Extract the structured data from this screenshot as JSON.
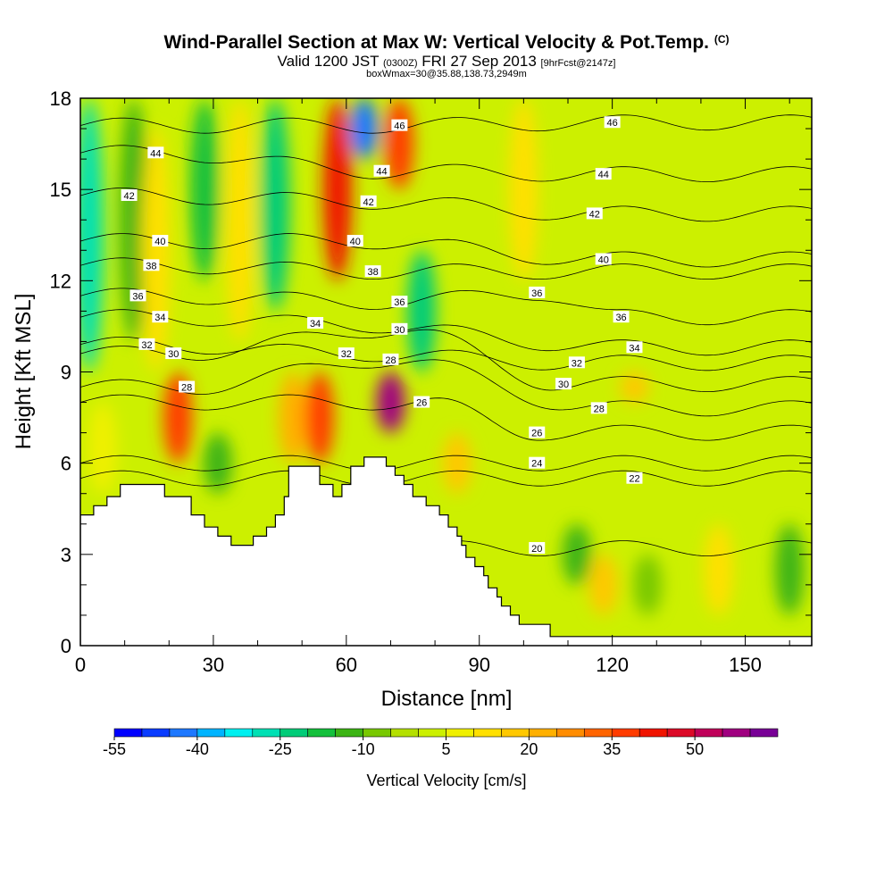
{
  "titles": {
    "main": "Wind-Parallel Section at Max W: Vertical Velocity & Pot.Temp.",
    "main_mark": "(C)",
    "valid_prefix": "Valid 1200 JST",
    "valid_utc": "(0300Z)",
    "valid_date": "FRI 27 Sep 2013",
    "valid_fcst": "[9hrFcst@2147z]",
    "box": "boxWmax=30@35.88,138.73,2949m"
  },
  "chart_data": {
    "type": "heatmap",
    "xlabel": "Distance [nm]",
    "ylabel": "Height [Kft MSL]",
    "xlim": [
      0,
      165
    ],
    "ylim": [
      0,
      18
    ],
    "x_ticks": [
      "0",
      "30",
      "60",
      "90",
      "120",
      "150"
    ],
    "y_ticks": [
      "0",
      "3",
      "6",
      "9",
      "12",
      "15",
      "18"
    ],
    "colorbar": {
      "label": "Vertical Velocity [cm/s]",
      "levels": [
        -55,
        -50,
        -45,
        -40,
        -35,
        -30,
        -25,
        -20,
        -15,
        -10,
        -5,
        0,
        5,
        10,
        15,
        20,
        25,
        30,
        35,
        40,
        45,
        50,
        55,
        60
      ],
      "tick_labels": [
        "-55",
        "-40",
        "-25",
        "-10",
        "5",
        "20",
        "35",
        "50"
      ],
      "colors": [
        "#0000ff",
        "#0a3cff",
        "#1e78ff",
        "#00b4ff",
        "#00f0f0",
        "#00e0b4",
        "#00cc78",
        "#14c03c",
        "#3cb414",
        "#78c800",
        "#b4e000",
        "#ccf000",
        "#f0f000",
        "#ffe000",
        "#ffc800",
        "#ffb000",
        "#ff8c00",
        "#ff6400",
        "#ff3c00",
        "#f01400",
        "#dc0a28",
        "#c0005a",
        "#a00080",
        "#780096"
      ]
    },
    "vertical_velocity_cells": [
      {
        "x": 2,
        "y0": 9,
        "y1": 18,
        "w": -30
      },
      {
        "x": 5,
        "y0": 5,
        "y1": 8,
        "w": 5
      },
      {
        "x": 12,
        "y0": 10,
        "y1": 18,
        "w": -15
      },
      {
        "x": 17,
        "y0": 9,
        "y1": 17,
        "w": 10
      },
      {
        "x": 22,
        "y0": 6,
        "y1": 9,
        "w": 35
      },
      {
        "x": 28,
        "y0": 12,
        "y1": 18,
        "w": -20
      },
      {
        "x": 31,
        "y0": 5,
        "y1": 7,
        "w": -15
      },
      {
        "x": 36,
        "y0": 10,
        "y1": 18,
        "w": 10
      },
      {
        "x": 44,
        "y0": 11,
        "y1": 18,
        "w": -25
      },
      {
        "x": 48,
        "y0": 6,
        "y1": 9,
        "w": 20
      },
      {
        "x": 54,
        "y0": 6,
        "y1": 9,
        "w": 35
      },
      {
        "x": 58,
        "y0": 12,
        "y1": 18,
        "w": 40
      },
      {
        "x": 64,
        "y0": 16,
        "y1": 18,
        "w": -45
      },
      {
        "x": 70,
        "y0": 7,
        "y1": 9,
        "w": 55
      },
      {
        "x": 72,
        "y0": 15,
        "y1": 18,
        "w": 35
      },
      {
        "x": 77,
        "y0": 9,
        "y1": 13,
        "w": -25
      },
      {
        "x": 85,
        "y0": 5,
        "y1": 7,
        "w": 15
      },
      {
        "x": 100,
        "y0": 12,
        "y1": 18,
        "w": 10
      },
      {
        "x": 112,
        "y0": 2,
        "y1": 4,
        "w": -15
      },
      {
        "x": 118,
        "y0": 1,
        "y1": 3,
        "w": 15
      },
      {
        "x": 125,
        "y0": 8,
        "y1": 9,
        "w": 15
      },
      {
        "x": 128,
        "y0": 1,
        "y1": 3,
        "w": -10
      },
      {
        "x": 144,
        "y0": 1,
        "y1": 4,
        "w": 10
      },
      {
        "x": 160,
        "y0": 1,
        "y1": 4,
        "w": -15
      }
    ],
    "theta_contours": [
      {
        "label": "20",
        "x_label": 103,
        "y_label": 3.2
      },
      {
        "label": "22",
        "x_label": 125,
        "y_label": 5.5
      },
      {
        "label": "24",
        "x_label": 103,
        "y_label": 6.0
      },
      {
        "label": "26",
        "x_label": 77,
        "y_label": 8.0
      },
      {
        "label": "26",
        "x_label": 103,
        "y_label": 7.0
      },
      {
        "label": "28",
        "x_label": 24,
        "y_label": 8.5
      },
      {
        "label": "28",
        "x_label": 70,
        "y_label": 9.4
      },
      {
        "label": "28",
        "x_label": 117,
        "y_label": 7.8
      },
      {
        "label": "30",
        "x_label": 21,
        "y_label": 9.6
      },
      {
        "label": "30",
        "x_label": 72,
        "y_label": 10.4
      },
      {
        "label": "30",
        "x_label": 109,
        "y_label": 8.6
      },
      {
        "label": "32",
        "x_label": 15,
        "y_label": 9.9
      },
      {
        "label": "32",
        "x_label": 60,
        "y_label": 9.6
      },
      {
        "label": "32",
        "x_label": 112,
        "y_label": 9.3
      },
      {
        "label": "34",
        "x_label": 18,
        "y_label": 10.8
      },
      {
        "label": "34",
        "x_label": 53,
        "y_label": 10.6
      },
      {
        "label": "34",
        "x_label": 125,
        "y_label": 9.8
      },
      {
        "label": "36",
        "x_label": 13,
        "y_label": 11.5
      },
      {
        "label": "36",
        "x_label": 72,
        "y_label": 11.3
      },
      {
        "label": "36",
        "x_label": 103,
        "y_label": 11.6
      },
      {
        "label": "36",
        "x_label": 122,
        "y_label": 10.8
      },
      {
        "label": "38",
        "x_label": 16,
        "y_label": 12.5
      },
      {
        "label": "38",
        "x_label": 66,
        "y_label": 12.3
      },
      {
        "label": "40",
        "x_label": 18,
        "y_label": 13.3
      },
      {
        "label": "40",
        "x_label": 62,
        "y_label": 13.3
      },
      {
        "label": "40",
        "x_label": 118,
        "y_label": 12.7
      },
      {
        "label": "42",
        "x_label": 11,
        "y_label": 14.8
      },
      {
        "label": "42",
        "x_label": 65,
        "y_label": 14.6
      },
      {
        "label": "42",
        "x_label": 116,
        "y_label": 14.2
      },
      {
        "label": "44",
        "x_label": 17,
        "y_label": 16.2
      },
      {
        "label": "44",
        "x_label": 68,
        "y_label": 15.6
      },
      {
        "label": "44",
        "x_label": 118,
        "y_label": 15.5
      },
      {
        "label": "46",
        "x_label": 72,
        "y_label": 17.1
      },
      {
        "label": "46",
        "x_label": 120,
        "y_label": 17.2
      }
    ],
    "terrain": [
      {
        "x": 0,
        "h": 4.3
      },
      {
        "x": 3,
        "h": 4.3
      },
      {
        "x": 3,
        "h": 4.6
      },
      {
        "x": 6,
        "h": 4.6
      },
      {
        "x": 6,
        "h": 4.9
      },
      {
        "x": 9,
        "h": 4.9
      },
      {
        "x": 9,
        "h": 5.3
      },
      {
        "x": 19,
        "h": 5.3
      },
      {
        "x": 19,
        "h": 4.9
      },
      {
        "x": 25,
        "h": 4.9
      },
      {
        "x": 25,
        "h": 4.3
      },
      {
        "x": 28,
        "h": 4.3
      },
      {
        "x": 28,
        "h": 3.9
      },
      {
        "x": 31,
        "h": 3.9
      },
      {
        "x": 31,
        "h": 3.6
      },
      {
        "x": 34,
        "h": 3.6
      },
      {
        "x": 34,
        "h": 3.3
      },
      {
        "x": 39,
        "h": 3.3
      },
      {
        "x": 39,
        "h": 3.6
      },
      {
        "x": 42,
        "h": 3.6
      },
      {
        "x": 42,
        "h": 3.9
      },
      {
        "x": 44,
        "h": 3.9
      },
      {
        "x": 44,
        "h": 4.3
      },
      {
        "x": 46,
        "h": 4.3
      },
      {
        "x": 46,
        "h": 4.9
      },
      {
        "x": 47,
        "h": 4.9
      },
      {
        "x": 47,
        "h": 5.9
      },
      {
        "x": 54,
        "h": 5.9
      },
      {
        "x": 54,
        "h": 5.3
      },
      {
        "x": 57,
        "h": 5.3
      },
      {
        "x": 57,
        "h": 4.9
      },
      {
        "x": 59,
        "h": 4.9
      },
      {
        "x": 59,
        "h": 5.3
      },
      {
        "x": 61,
        "h": 5.3
      },
      {
        "x": 61,
        "h": 5.9
      },
      {
        "x": 64,
        "h": 5.9
      },
      {
        "x": 64,
        "h": 6.2
      },
      {
        "x": 69,
        "h": 6.2
      },
      {
        "x": 69,
        "h": 5.9
      },
      {
        "x": 71,
        "h": 5.9
      },
      {
        "x": 71,
        "h": 5.6
      },
      {
        "x": 73,
        "h": 5.6
      },
      {
        "x": 73,
        "h": 5.3
      },
      {
        "x": 75,
        "h": 5.3
      },
      {
        "x": 75,
        "h": 4.9
      },
      {
        "x": 78,
        "h": 4.9
      },
      {
        "x": 78,
        "h": 4.6
      },
      {
        "x": 81,
        "h": 4.6
      },
      {
        "x": 81,
        "h": 4.3
      },
      {
        "x": 83,
        "h": 4.3
      },
      {
        "x": 83,
        "h": 3.9
      },
      {
        "x": 85,
        "h": 3.9
      },
      {
        "x": 85,
        "h": 3.6
      },
      {
        "x": 86,
        "h": 3.6
      },
      {
        "x": 86,
        "h": 3.3
      },
      {
        "x": 87,
        "h": 3.3
      },
      {
        "x": 87,
        "h": 2.9
      },
      {
        "x": 89,
        "h": 2.9
      },
      {
        "x": 89,
        "h": 2.6
      },
      {
        "x": 91,
        "h": 2.6
      },
      {
        "x": 91,
        "h": 2.3
      },
      {
        "x": 92,
        "h": 2.3
      },
      {
        "x": 92,
        "h": 1.9
      },
      {
        "x": 94,
        "h": 1.9
      },
      {
        "x": 94,
        "h": 1.6
      },
      {
        "x": 95,
        "h": 1.6
      },
      {
        "x": 95,
        "h": 1.3
      },
      {
        "x": 97,
        "h": 1.3
      },
      {
        "x": 97,
        "h": 1.0
      },
      {
        "x": 99,
        "h": 1.0
      },
      {
        "x": 99,
        "h": 0.7
      },
      {
        "x": 106,
        "h": 0.7
      },
      {
        "x": 106,
        "h": 0.3
      },
      {
        "x": 165,
        "h": 0.3
      }
    ]
  }
}
